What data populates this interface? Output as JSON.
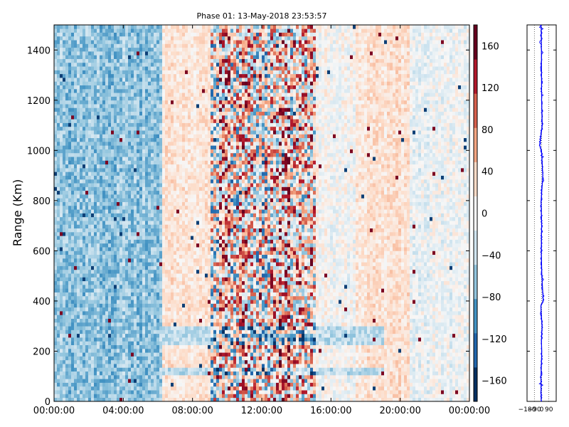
{
  "chart_data": [
    {
      "type": "heatmap",
      "title": "Phase 01: 13-May-2018 23:53:57",
      "ylabel": "Range (Km)",
      "xlabel": "",
      "x_tick_labels": [
        "00:00:00",
        "04:00:00",
        "08:00:00",
        "12:00:00",
        "16:00:00",
        "20:00:00",
        "00:00:00"
      ],
      "x_range_hours": [
        0,
        24
      ],
      "y_ticks": [
        0,
        200,
        400,
        600,
        800,
        1000,
        1200,
        1400
      ],
      "ylim": [
        0,
        1500
      ],
      "colorbar": {
        "colormap": "RdBu_r",
        "vmin": -180,
        "vmax": 180,
        "ticks": [
          -160,
          -120,
          -80,
          -40,
          0,
          40,
          80,
          120,
          160
        ],
        "colors": [
          "#053061",
          "#2166ac",
          "#4393c3",
          "#92c5de",
          "#d1e5f0",
          "#f7f7f7",
          "#fddbc7",
          "#f4a582",
          "#d6604d",
          "#b2182b",
          "#67001f"
        ]
      },
      "time_segments": [
        {
          "start_hour": 0.0,
          "end_hour": 6.3,
          "mean_phase": -70,
          "spread": 35
        },
        {
          "start_hour": 6.3,
          "end_hour": 9.0,
          "mean_phase": 25,
          "spread": 25
        },
        {
          "start_hour": 9.0,
          "end_hour": 15.2,
          "mean_phase": 20,
          "spread": 140
        },
        {
          "start_hour": 15.2,
          "end_hour": 17.5,
          "mean_phase": 0,
          "spread": 30
        },
        {
          "start_hour": 17.5,
          "end_hour": 20.5,
          "mean_phase": 25,
          "spread": 25
        },
        {
          "start_hour": 20.5,
          "end_hour": 24.0,
          "mean_phase": -10,
          "spread": 30
        }
      ],
      "noted_bands_km": [
        {
          "range_from": 100,
          "range_to": 130,
          "mean_phase": -50
        },
        {
          "range_from": 230,
          "range_to": 300,
          "mean_phase": -45
        }
      ]
    },
    {
      "type": "line",
      "x_tick_labels": [
        "−180",
        "−90",
        "0",
        "90"
      ],
      "xlim": [
        -180,
        180
      ],
      "ylim": [
        0,
        1500
      ],
      "series": [
        {
          "color": "#0000ff",
          "x": [
            -5,
            -8,
            2,
            -3,
            5,
            -10,
            20,
            3,
            -4,
            0,
            -6,
            15,
            -2,
            -25,
            8,
            0,
            -3,
            -5
          ],
          "y": [
            0,
            100,
            200,
            240,
            300,
            380,
            400,
            500,
            600,
            700,
            800,
            900,
            1000,
            1020,
            1100,
            1200,
            1400,
            1500
          ]
        }
      ]
    }
  ]
}
